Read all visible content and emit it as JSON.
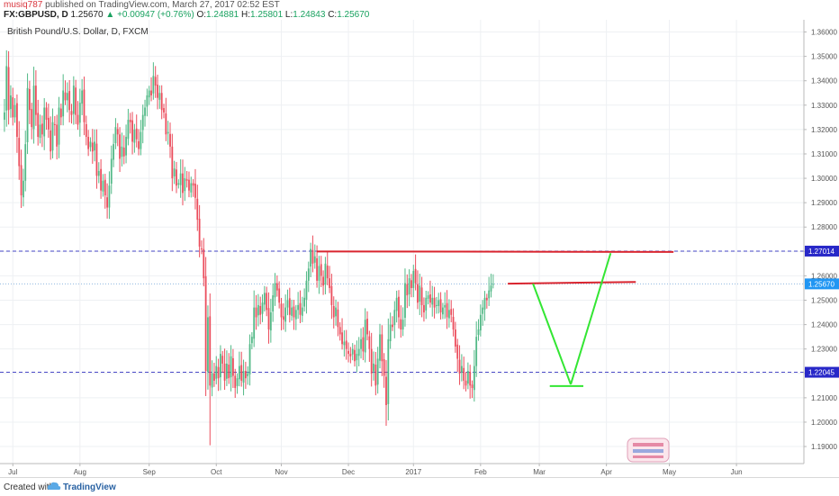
{
  "header": {
    "user": "musiq787",
    "published": "published on TradingView.com, March 27, 2017 02:52 EST",
    "symbol": "FX:GBPUSD, D",
    "last": "1.25670",
    "change": "+0.00947 (+0.76%)",
    "o_label": "O:",
    "o_value": "1.24881",
    "h_label": "H:",
    "h_value": "1.25801",
    "l_label": "L:",
    "l_value": "1.24843",
    "c_label": "C:",
    "c_value": "1.25670"
  },
  "footer": {
    "created": "Created with",
    "brand": "TradingView"
  },
  "icons": {
    "up": "triangle-up-icon",
    "logo": "tradingview-cloud-icon"
  },
  "colors": {
    "up": "#53b987",
    "down": "#eb4d5c",
    "hline": "#4a4ac8",
    "red_line": "#d9252f",
    "green_line": "#33e633",
    "price_tag": "#2196f3",
    "hline_tag": "#2828c8"
  },
  "chart_data": {
    "type": "candlestick",
    "title": "British Pound/U.S. Dollar, D, FXCM",
    "x_labels": [
      {
        "label": "Jul",
        "i": 5
      },
      {
        "label": "Aug",
        "i": 37
      },
      {
        "label": "Sep",
        "i": 70
      },
      {
        "label": "Oct",
        "i": 102
      },
      {
        "label": "Nov",
        "i": 133
      },
      {
        "label": "Dec",
        "i": 165
      },
      {
        "label": "2017",
        "i": 196
      },
      {
        "label": "Feb",
        "i": 228
      },
      {
        "label": "Mar",
        "i": 256
      },
      {
        "label": "Apr",
        "i": 288
      },
      {
        "label": "May",
        "i": 318
      },
      {
        "label": "Jun",
        "i": 350
      }
    ],
    "y_ticks": [
      "1.36000",
      "1.35000",
      "1.34000",
      "1.33000",
      "1.32000",
      "1.31000",
      "1.30000",
      "1.29000",
      "1.28000",
      "1.27000",
      "1.26000",
      "1.25000",
      "1.24000",
      "1.23000",
      "1.22000",
      "1.21000",
      "1.20000",
      "1.19000"
    ],
    "ylim": [
      1.183,
      1.365
    ],
    "price_label": "1.25670",
    "hlines": [
      {
        "value": 1.27014,
        "label": "1.27014"
      },
      {
        "value": 1.22045,
        "label": "1.22045"
      }
    ],
    "red_lines": [
      {
        "x1": 150,
        "y1": 1.27,
        "x2": 320,
        "y2": 1.2698
      },
      {
        "x1": 241,
        "y1": 1.2568,
        "x2": 302,
        "y2": 1.2575
      }
    ],
    "green_lines": [
      {
        "x1": 253,
        "y1": 1.2568,
        "x2": 271,
        "y2": 1.2155
      },
      {
        "x1": 271,
        "y1": 1.2155,
        "x2": 290,
        "y2": 1.2693
      },
      {
        "x1": 261,
        "y1": 1.2148,
        "x2": 277,
        "y2": 1.2148
      }
    ],
    "candles": [
      [
        1,
        1.327
      ],
      [
        2,
        1.346
      ],
      [
        3,
        1.328
      ],
      [
        4,
        1.334
      ],
      [
        5,
        1.325
      ],
      [
        6,
        1.33
      ],
      [
        7,
        1.317
      ],
      [
        8,
        1.305
      ],
      [
        9,
        1.293
      ],
      [
        10,
        1.299
      ],
      [
        11,
        1.314
      ],
      [
        12,
        1.337
      ],
      [
        13,
        1.328
      ],
      [
        14,
        1.321
      ],
      [
        15,
        1.338
      ],
      [
        16,
        1.326
      ],
      [
        17,
        1.317
      ],
      [
        18,
        1.322
      ],
      [
        19,
        1.318
      ],
      [
        20,
        1.329
      ],
      [
        21,
        1.324
      ],
      [
        22,
        1.32
      ],
      [
        23,
        1.311
      ],
      [
        24,
        1.323
      ],
      [
        25,
        1.322
      ],
      [
        26,
        1.313
      ],
      [
        27,
        1.329
      ],
      [
        28,
        1.325
      ],
      [
        29,
        1.336
      ],
      [
        30,
        1.332
      ],
      [
        31,
        1.335
      ],
      [
        32,
        1.328
      ],
      [
        33,
        1.326
      ],
      [
        34,
        1.338
      ],
      [
        35,
        1.326
      ],
      [
        36,
        1.322
      ],
      [
        37,
        1.331
      ],
      [
        38,
        1.336
      ],
      [
        39,
        1.323
      ],
      [
        40,
        1.317
      ],
      [
        41,
        1.312
      ],
      [
        42,
        1.315
      ],
      [
        43,
        1.311
      ],
      [
        44,
        1.315
      ],
      [
        45,
        1.301
      ],
      [
        46,
        1.303
      ],
      [
        47,
        1.295
      ],
      [
        48,
        1.299
      ],
      [
        49,
        1.293
      ],
      [
        50,
        1.288
      ],
      [
        51,
        1.297
      ],
      [
        52,
        1.308
      ],
      [
        53,
        1.314
      ],
      [
        54,
        1.321
      ],
      [
        55,
        1.318
      ],
      [
        56,
        1.308
      ],
      [
        57,
        1.313
      ],
      [
        58,
        1.309
      ],
      [
        59,
        1.317
      ],
      [
        60,
        1.324
      ],
      [
        61,
        1.323
      ],
      [
        62,
        1.315
      ],
      [
        63,
        1.32
      ],
      [
        64,
        1.316
      ],
      [
        65,
        1.312
      ],
      [
        66,
        1.319
      ],
      [
        67,
        1.326
      ],
      [
        68,
        1.329
      ],
      [
        69,
        1.334
      ],
      [
        70,
        1.336
      ],
      [
        71,
        1.334
      ],
      [
        72,
        1.342
      ],
      [
        73,
        1.338
      ],
      [
        74,
        1.333
      ],
      [
        75,
        1.335
      ],
      [
        76,
        1.328
      ],
      [
        77,
        1.327
      ],
      [
        78,
        1.318
      ],
      [
        79,
        1.319
      ],
      [
        80,
        1.313
      ],
      [
        81,
        1.3
      ],
      [
        82,
        1.304
      ],
      [
        83,
        1.297
      ],
      [
        84,
        1.298
      ],
      [
        85,
        1.302
      ],
      [
        86,
        1.294
      ],
      [
        87,
        1.3
      ],
      [
        88,
        1.299
      ],
      [
        89,
        1.295
      ],
      [
        90,
        1.298
      ],
      [
        91,
        1.297
      ],
      [
        92,
        1.292
      ],
      [
        93,
        1.283
      ],
      [
        94,
        1.272
      ],
      [
        95,
        1.271
      ],
      [
        96,
        1.259
      ],
      [
        97,
        1.221
      ],
      [
        98,
        1.243
      ],
      [
        99,
        1.215
      ],
      [
        100,
        1.22
      ],
      [
        101,
        1.217
      ],
      [
        102,
        1.223
      ],
      [
        103,
        1.218
      ],
      [
        104,
        1.228
      ],
      [
        105,
        1.224
      ],
      [
        106,
        1.217
      ],
      [
        107,
        1.224
      ],
      [
        108,
        1.218
      ],
      [
        109,
        1.227
      ],
      [
        110,
        1.219
      ],
      [
        111,
        1.214
      ],
      [
        112,
        1.218
      ],
      [
        113,
        1.223
      ],
      [
        114,
        1.217
      ],
      [
        115,
        1.221
      ],
      [
        116,
        1.218
      ],
      [
        117,
        1.22
      ],
      [
        118,
        1.232
      ],
      [
        119,
        1.235
      ],
      [
        120,
        1.247
      ],
      [
        121,
        1.243
      ],
      [
        122,
        1.248
      ],
      [
        123,
        1.244
      ],
      [
        124,
        1.249
      ],
      [
        125,
        1.253
      ],
      [
        126,
        1.246
      ],
      [
        127,
        1.238
      ],
      [
        128,
        1.245
      ],
      [
        129,
        1.252
      ],
      [
        130,
        1.257
      ],
      [
        131,
        1.254
      ],
      [
        132,
        1.249
      ],
      [
        133,
        1.243
      ],
      [
        134,
        1.242
      ],
      [
        135,
        1.247
      ],
      [
        136,
        1.25
      ],
      [
        137,
        1.244
      ],
      [
        138,
        1.247
      ],
      [
        139,
        1.243
      ],
      [
        140,
        1.246
      ],
      [
        141,
        1.248
      ],
      [
        142,
        1.244
      ],
      [
        143,
        1.247
      ],
      [
        144,
        1.251
      ],
      [
        145,
        1.258
      ],
      [
        146,
        1.263
      ],
      [
        147,
        1.271
      ],
      [
        148,
        1.265
      ],
      [
        149,
        1.268
      ],
      [
        150,
        1.258
      ],
      [
        151,
        1.264
      ],
      [
        152,
        1.26
      ],
      [
        153,
        1.256
      ],
      [
        154,
        1.265
      ],
      [
        155,
        1.259
      ],
      [
        156,
        1.255
      ],
      [
        157,
        1.248
      ],
      [
        158,
        1.243
      ],
      [
        159,
        1.247
      ],
      [
        160,
        1.239
      ],
      [
        161,
        1.236
      ],
      [
        162,
        1.232
      ],
      [
        163,
        1.233
      ],
      [
        164,
        1.23
      ],
      [
        165,
        1.228
      ],
      [
        166,
        1.227
      ],
      [
        167,
        1.23
      ],
      [
        168,
        1.225
      ],
      [
        169,
        1.228
      ],
      [
        170,
        1.23
      ],
      [
        171,
        1.234
      ],
      [
        172,
        1.229
      ],
      [
        173,
        1.242
      ],
      [
        174,
        1.236
      ],
      [
        175,
        1.23
      ],
      [
        176,
        1.22
      ],
      [
        177,
        1.224
      ],
      [
        178,
        1.215
      ],
      [
        179,
        1.226
      ],
      [
        180,
        1.236
      ],
      [
        181,
        1.225
      ],
      [
        182,
        1.219
      ],
      [
        183,
        1.207
      ],
      [
        184,
        1.234
      ],
      [
        185,
        1.24
      ],
      [
        186,
        1.239
      ],
      [
        187,
        1.246
      ],
      [
        188,
        1.251
      ],
      [
        189,
        1.243
      ],
      [
        190,
        1.238
      ],
      [
        191,
        1.242
      ],
      [
        192,
        1.257
      ],
      [
        193,
        1.252
      ],
      [
        194,
        1.259
      ],
      [
        195,
        1.255
      ],
      [
        196,
        1.262
      ],
      [
        197,
        1.257
      ],
      [
        198,
        1.249
      ],
      [
        199,
        1.256
      ],
      [
        200,
        1.248
      ],
      [
        201,
        1.245
      ],
      [
        202,
        1.251
      ],
      [
        203,
        1.252
      ],
      [
        204,
        1.249
      ],
      [
        205,
        1.251
      ],
      [
        206,
        1.247
      ],
      [
        207,
        1.248
      ],
      [
        208,
        1.25
      ],
      [
        209,
        1.245
      ],
      [
        210,
        1.247
      ],
      [
        211,
        1.248
      ],
      [
        212,
        1.243
      ],
      [
        213,
        1.246
      ],
      [
        214,
        1.244
      ],
      [
        215,
        1.238
      ],
      [
        216,
        1.231
      ],
      [
        217,
        1.226
      ],
      [
        218,
        1.22
      ],
      [
        219,
        1.223
      ],
      [
        220,
        1.217
      ],
      [
        221,
        1.215
      ],
      [
        222,
        1.221
      ],
      [
        223,
        1.215
      ],
      [
        224,
        1.214
      ],
      [
        225,
        1.223
      ],
      [
        226,
        1.235
      ],
      [
        227,
        1.238
      ],
      [
        228,
        1.244
      ],
      [
        229,
        1.247
      ],
      [
        230,
        1.251
      ],
      [
        231,
        1.25
      ],
      [
        232,
        1.254
      ],
      [
        233,
        1.256
      ],
      [
        234,
        1.2567
      ]
    ]
  }
}
